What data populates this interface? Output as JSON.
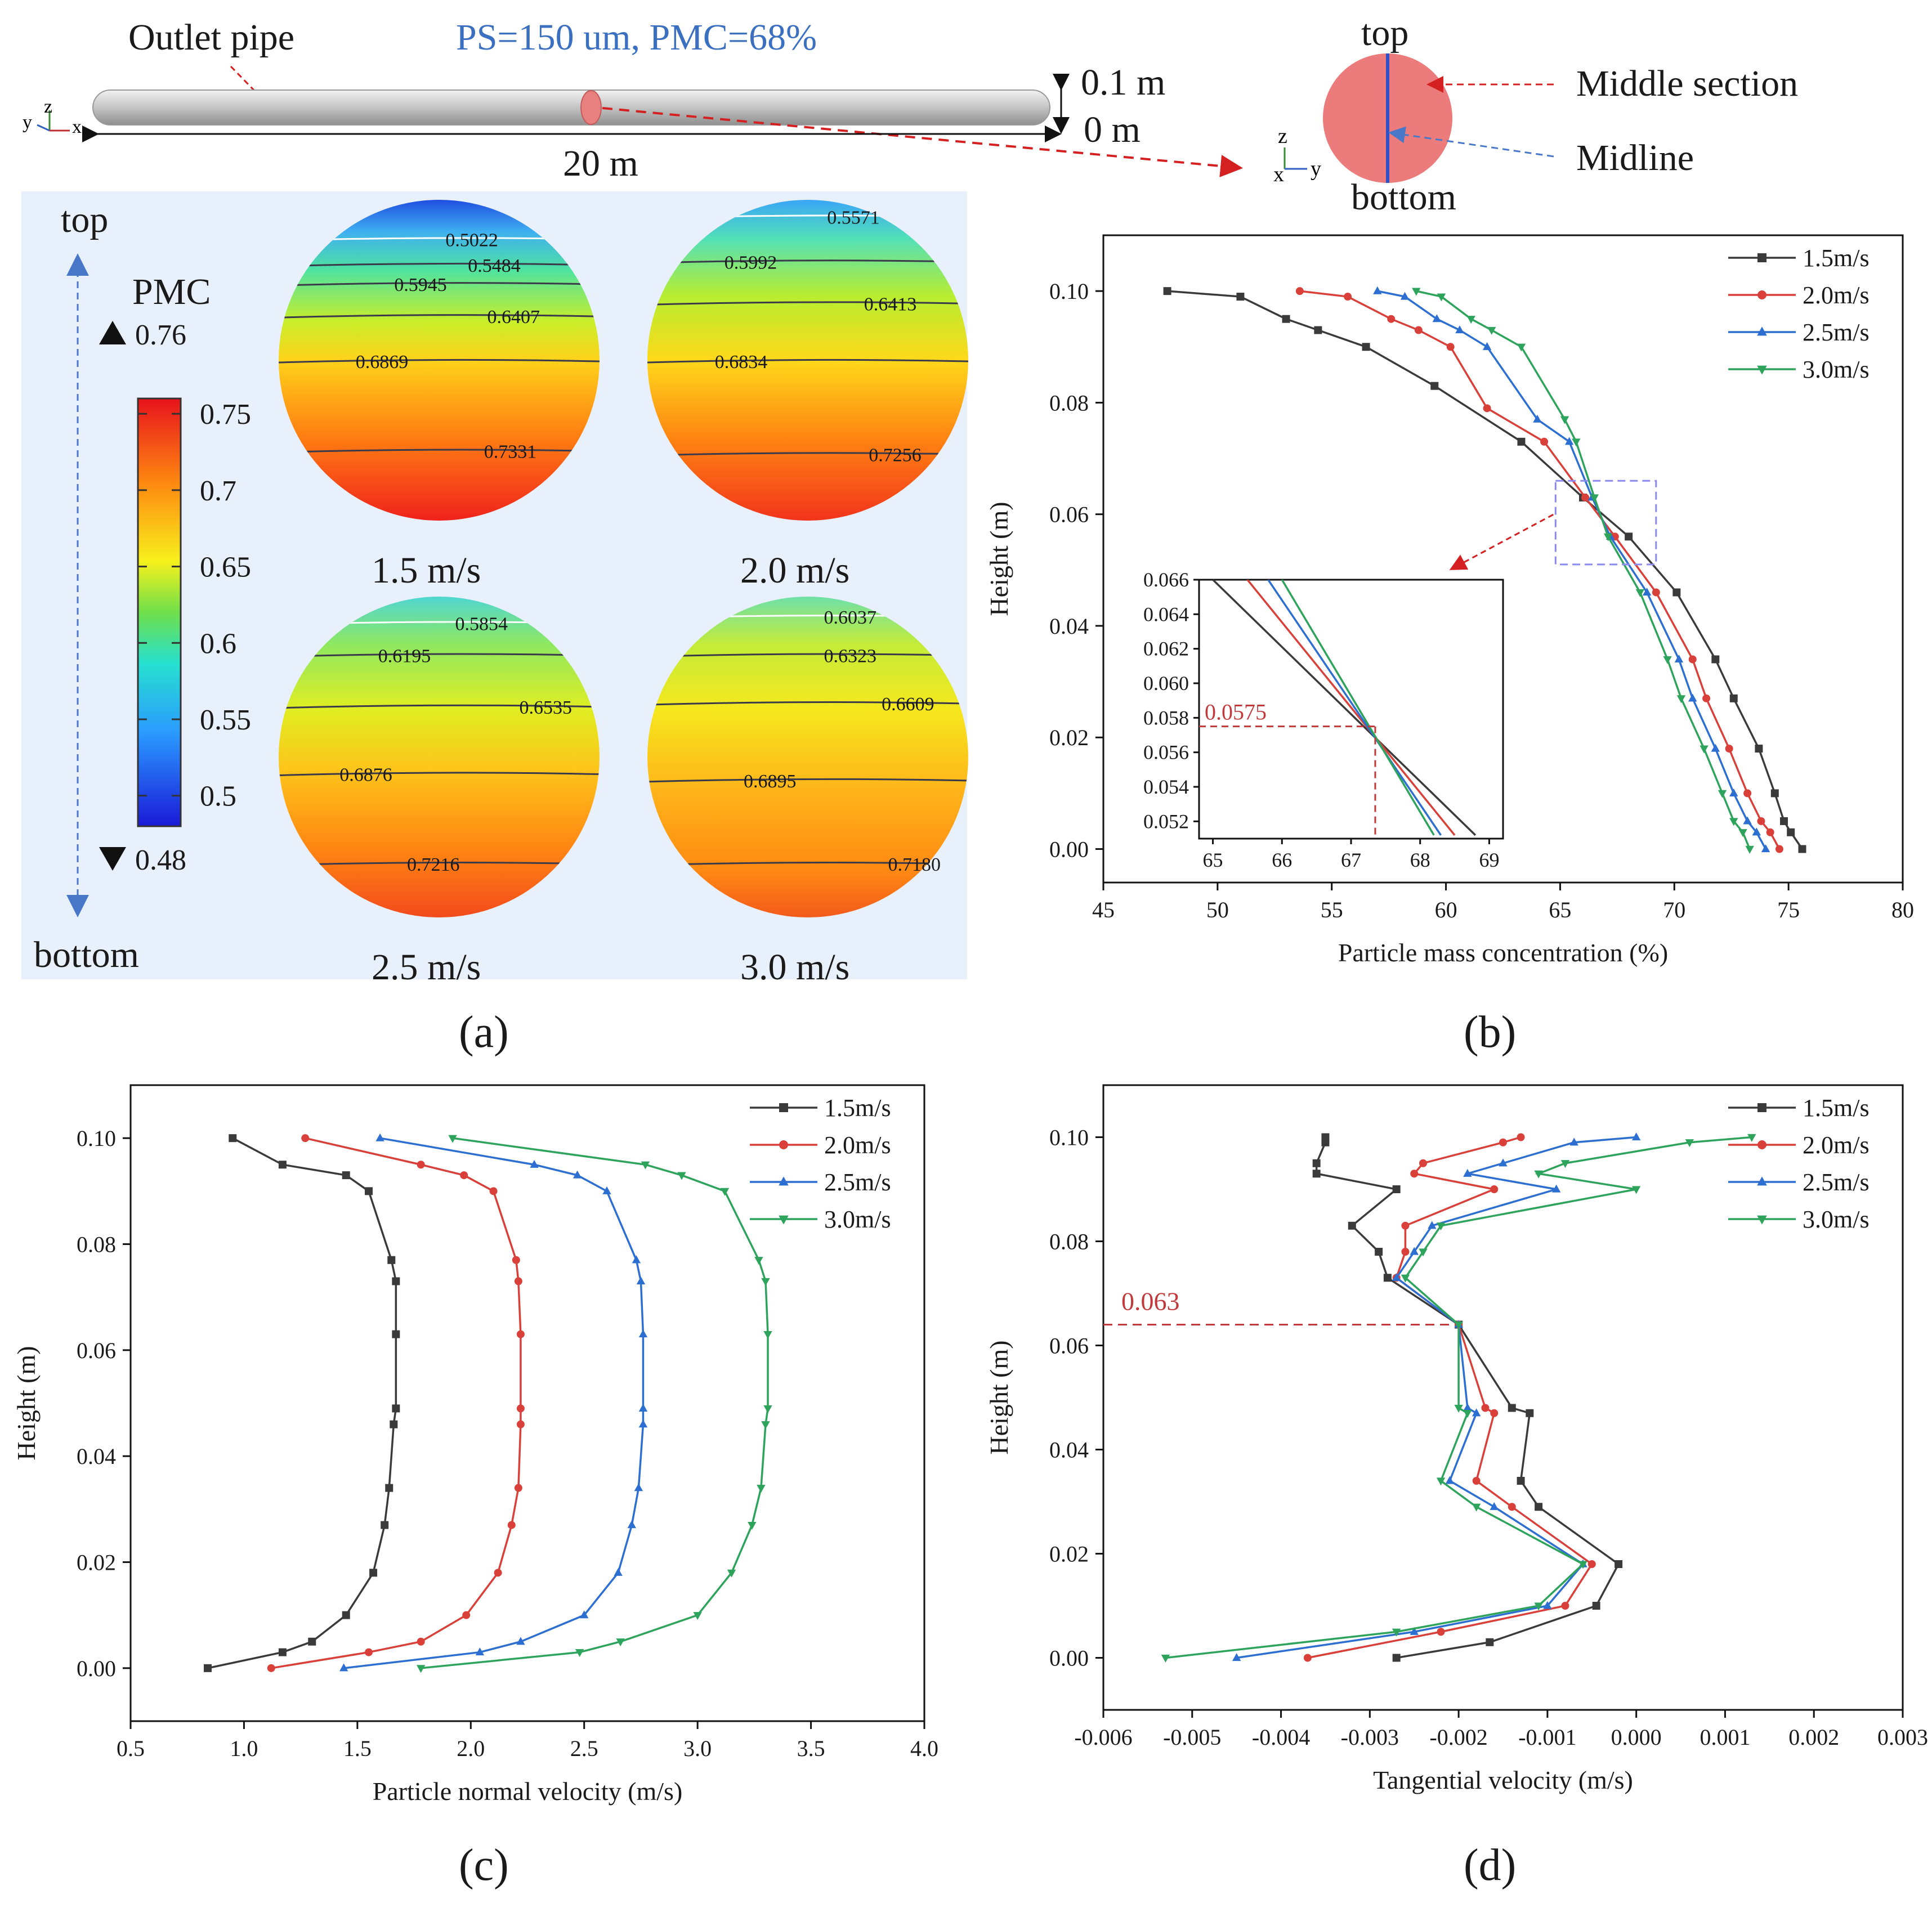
{
  "colors": {
    "s15": "#3a3a3a",
    "s20": "#d9403a",
    "s25": "#2c6fd1",
    "s30": "#2ea35b",
    "annot": "#c0393b",
    "ps_text": "#3b6fc0",
    "panel_bg": "#e8f0fb"
  },
  "header": {
    "outlet_pipe": "Outlet pipe",
    "ps_pmc": "PS=150 um, PMC=68%",
    "length": "20 m",
    "h_top": "0.1 m",
    "h_bot": "0 m",
    "axes_pipe": {
      "y": "y",
      "z": "z",
      "x": "x"
    },
    "axes_section": {
      "z": "z",
      "x": "x",
      "y": "y"
    },
    "sec_top": "top",
    "sec_bottom": "bottom",
    "middle_section": "Middle section",
    "midline": "Midline"
  },
  "panel_a": {
    "label": "(a)",
    "top": "top",
    "bottom": "bottom",
    "pmc": "PMC",
    "max_marker": "0.76",
    "min_marker": "0.48",
    "colorbar_ticks": [
      "0.75",
      "0.7",
      "0.65",
      "0.6",
      "0.55",
      "0.5"
    ],
    "circles": [
      {
        "title": "1.5 m/s",
        "labels": [
          "0.5022",
          "0.5484",
          "0.5945",
          "0.6407",
          "0.6869",
          "0.7331"
        ]
      },
      {
        "title": "2.0 m/s",
        "labels": [
          "0.5571",
          "0.5992",
          "0.6413",
          "0.6834",
          "0.7256"
        ]
      },
      {
        "title": "2.5 m/s",
        "labels": [
          "0.5854",
          "0.6195",
          "0.6535",
          "0.6876",
          "0.7216"
        ]
      },
      {
        "title": "3.0 m/s",
        "labels": [
          "0.6037",
          "0.6323",
          "0.6609",
          "0.6895",
          "0.7180"
        ]
      }
    ]
  },
  "panel_b": {
    "label": "(b)"
  },
  "panel_c": {
    "label": "(c)"
  },
  "panel_d": {
    "label": "(d)"
  },
  "chart_data": [
    {
      "id": "b",
      "type": "line",
      "xlabel": "Particle mass concentration (%)",
      "ylabel": "Height (m)",
      "xlim": [
        45,
        80
      ],
      "ylim": [
        -0.006,
        0.11
      ],
      "xticks": [
        "45",
        "50",
        "55",
        "60",
        "65",
        "70",
        "75",
        "80"
      ],
      "yticks": [
        "0.00",
        "0.02",
        "0.04",
        "0.06",
        "0.08",
        "0.10"
      ],
      "legend_position": "top-right",
      "series": [
        {
          "name": "1.5m/s",
          "marker": "square",
          "x": [
            75.6,
            75.1,
            74.8,
            74.4,
            73.7,
            72.6,
            71.8,
            70.1,
            68.0,
            66.0,
            63.3,
            59.5,
            56.5,
            54.4,
            53.0,
            51.0,
            47.8
          ],
          "y": [
            0.0,
            0.003,
            0.005,
            0.01,
            0.018,
            0.027,
            0.034,
            0.046,
            0.056,
            0.063,
            0.073,
            0.083,
            0.09,
            0.093,
            0.095,
            0.099,
            0.1
          ]
        },
        {
          "name": "2.0m/s",
          "marker": "circle",
          "x": [
            74.6,
            74.2,
            73.8,
            73.2,
            72.4,
            71.4,
            70.8,
            69.2,
            67.4,
            66.1,
            64.3,
            61.8,
            60.2,
            58.8,
            57.6,
            55.7,
            53.6
          ],
          "y": [
            0.0,
            0.003,
            0.005,
            0.01,
            0.018,
            0.027,
            0.034,
            0.046,
            0.056,
            0.063,
            0.073,
            0.079,
            0.09,
            0.093,
            0.095,
            0.099,
            0.1
          ]
        },
        {
          "name": "2.5m/s",
          "marker": "triangle-up",
          "x": [
            74.0,
            73.6,
            73.2,
            72.6,
            71.8,
            70.8,
            70.2,
            68.8,
            67.2,
            66.4,
            65.4,
            64.0,
            61.8,
            60.6,
            59.6,
            58.2,
            57.0
          ],
          "y": [
            0.0,
            0.003,
            0.005,
            0.01,
            0.018,
            0.027,
            0.034,
            0.046,
            0.056,
            0.063,
            0.073,
            0.077,
            0.09,
            0.093,
            0.095,
            0.099,
            0.1
          ]
        },
        {
          "name": "3.0m/s",
          "marker": "triangle-down",
          "x": [
            73.3,
            73.0,
            72.6,
            72.1,
            71.3,
            70.3,
            69.7,
            68.5,
            67.1,
            66.5,
            65.7,
            65.2,
            63.3,
            62.0,
            61.1,
            59.8,
            58.7
          ],
          "y": [
            0.0,
            0.003,
            0.005,
            0.01,
            0.018,
            0.027,
            0.034,
            0.046,
            0.056,
            0.063,
            0.073,
            0.077,
            0.09,
            0.093,
            0.095,
            0.099,
            0.1
          ]
        }
      ],
      "inset": {
        "xlim": [
          64.8,
          69.2
        ],
        "ylim": [
          0.051,
          0.066
        ],
        "xticks": [
          "65",
          "66",
          "67",
          "68",
          "69"
        ],
        "yticks": [
          "0.052",
          "0.054",
          "0.056",
          "0.058",
          "0.060",
          "0.062",
          "0.064",
          "0.066"
        ],
        "annotation": "0.0575",
        "annotation_x": 67.35,
        "annotation_y": 0.0575,
        "lines": [
          {
            "x": [
              65.0,
              68.8
            ],
            "y": [
              0.066,
              0.0512
            ]
          },
          {
            "x": [
              65.5,
              68.5
            ],
            "y": [
              0.066,
              0.0512
            ]
          },
          {
            "x": [
              65.8,
              68.3
            ],
            "y": [
              0.066,
              0.0512
            ]
          },
          {
            "x": [
              66.0,
              68.2
            ],
            "y": [
              0.066,
              0.0512
            ]
          }
        ]
      }
    },
    {
      "id": "c",
      "type": "line",
      "xlabel": "Particle normal velocity (m/s)",
      "ylabel": "Height (m)",
      "xlim": [
        0.5,
        4.0
      ],
      "ylim": [
        -0.01,
        0.11
      ],
      "xticks": [
        "0.5",
        "1.0",
        "1.5",
        "2.0",
        "2.5",
        "3.0",
        "3.5",
        "4.0"
      ],
      "yticks": [
        "0.00",
        "0.02",
        "0.04",
        "0.06",
        "0.08",
        "0.10"
      ],
      "legend_position": "top-right",
      "series": [
        {
          "name": "1.5m/s",
          "marker": "square",
          "x": [
            0.84,
            1.17,
            1.3,
            1.45,
            1.57,
            1.62,
            1.64,
            1.66,
            1.67,
            1.67,
            1.67,
            1.65,
            1.55,
            1.45,
            1.17,
            0.95
          ],
          "y": [
            0.0,
            0.003,
            0.005,
            0.01,
            0.018,
            0.027,
            0.034,
            0.046,
            0.049,
            0.063,
            0.073,
            0.077,
            0.09,
            0.093,
            0.095,
            0.1
          ]
        },
        {
          "name": "2.0m/s",
          "marker": "circle",
          "x": [
            1.12,
            1.55,
            1.78,
            1.98,
            2.12,
            2.18,
            2.21,
            2.22,
            2.22,
            2.22,
            2.21,
            2.2,
            2.1,
            1.97,
            1.78,
            1.27
          ],
          "y": [
            0.0,
            0.003,
            0.005,
            0.01,
            0.018,
            0.027,
            0.034,
            0.046,
            0.049,
            0.063,
            0.073,
            0.077,
            0.09,
            0.093,
            0.095,
            0.1
          ]
        },
        {
          "name": "2.5m/s",
          "marker": "triangle-up",
          "x": [
            1.44,
            2.04,
            2.22,
            2.5,
            2.65,
            2.71,
            2.74,
            2.76,
            2.76,
            2.76,
            2.75,
            2.73,
            2.6,
            2.47,
            2.28,
            1.6
          ],
          "y": [
            0.0,
            0.003,
            0.005,
            0.01,
            0.018,
            0.027,
            0.034,
            0.046,
            0.049,
            0.063,
            0.073,
            0.077,
            0.09,
            0.093,
            0.095,
            0.1
          ]
        },
        {
          "name": "3.0m/s",
          "marker": "triangle-down",
          "x": [
            1.78,
            2.48,
            2.66,
            3.0,
            3.15,
            3.24,
            3.28,
            3.3,
            3.31,
            3.31,
            3.3,
            3.27,
            3.12,
            2.93,
            2.77,
            1.92
          ],
          "y": [
            0.0,
            0.003,
            0.005,
            0.01,
            0.018,
            0.027,
            0.034,
            0.046,
            0.049,
            0.063,
            0.073,
            0.077,
            0.09,
            0.093,
            0.095,
            0.1
          ]
        }
      ]
    },
    {
      "id": "d",
      "type": "line",
      "xlabel": "Tangential velocity (m/s)",
      "ylabel": "Height (m)",
      "xlim": [
        -0.006,
        0.003
      ],
      "ylim": [
        -0.01,
        0.11
      ],
      "xticks": [
        "-0.006",
        "-0.005",
        "-0.004",
        "-0.003",
        "-0.002",
        "-0.001",
        "0.000",
        "0.001",
        "0.002",
        "0.003"
      ],
      "yticks": [
        "0.00",
        "0.02",
        "0.04",
        "0.06",
        "0.08",
        "0.10"
      ],
      "legend_position": "top-right",
      "annotation": "0.063",
      "annotation_y": 0.064,
      "series": [
        {
          "name": "1.5m/s",
          "marker": "square",
          "x": [
            -0.0027,
            -0.00165,
            -0.00045,
            -0.0002,
            -0.0011,
            -0.0013,
            -0.0012,
            -0.0014,
            -0.002,
            -0.0028,
            -0.0029,
            -0.0032,
            -0.0027,
            -0.0036,
            -0.0036,
            -0.0035,
            -0.0035
          ],
          "y": [
            0.0,
            0.003,
            0.01,
            0.018,
            0.029,
            0.034,
            0.047,
            0.048,
            0.064,
            0.073,
            0.078,
            0.083,
            0.09,
            0.093,
            0.095,
            0.099,
            0.1
          ]
        },
        {
          "name": "2.0m/s",
          "marker": "circle",
          "x": [
            -0.0037,
            -0.0022,
            -0.0008,
            -0.0005,
            -0.0014,
            -0.0018,
            -0.0016,
            -0.0017,
            -0.002,
            -0.0027,
            -0.0026,
            -0.0026,
            -0.0016,
            -0.0025,
            -0.0024,
            -0.0015,
            -0.0013
          ],
          "y": [
            0.0,
            0.005,
            0.01,
            0.018,
            0.029,
            0.034,
            0.047,
            0.048,
            0.064,
            0.073,
            0.078,
            0.083,
            0.09,
            0.093,
            0.095,
            0.099,
            0.1
          ]
        },
        {
          "name": "2.5m/s",
          "marker": "triangle-up",
          "x": [
            -0.0045,
            -0.0025,
            -0.001,
            -0.0006,
            -0.0016,
            -0.0021,
            -0.0018,
            -0.0019,
            -0.002,
            -0.0027,
            -0.0025,
            -0.0023,
            -0.0009,
            -0.0019,
            -0.0015,
            -0.0007,
            0.0
          ],
          "y": [
            0.0,
            0.005,
            0.01,
            0.018,
            0.029,
            0.034,
            0.047,
            0.048,
            0.064,
            0.073,
            0.078,
            0.083,
            0.09,
            0.093,
            0.095,
            0.099,
            0.1
          ]
        },
        {
          "name": "3.0m/s",
          "marker": "triangle-down",
          "x": [
            -0.0053,
            -0.0027,
            -0.0011,
            -0.0006,
            -0.0018,
            -0.0022,
            -0.0019,
            -0.002,
            -0.002,
            -0.0026,
            -0.0024,
            -0.0022,
            0.0,
            -0.0011,
            -0.0008,
            0.0006,
            0.0013
          ],
          "y": [
            0.0,
            0.005,
            0.01,
            0.018,
            0.029,
            0.034,
            0.047,
            0.048,
            0.064,
            0.073,
            0.078,
            0.083,
            0.09,
            0.093,
            0.095,
            0.099,
            0.1
          ]
        }
      ]
    }
  ]
}
